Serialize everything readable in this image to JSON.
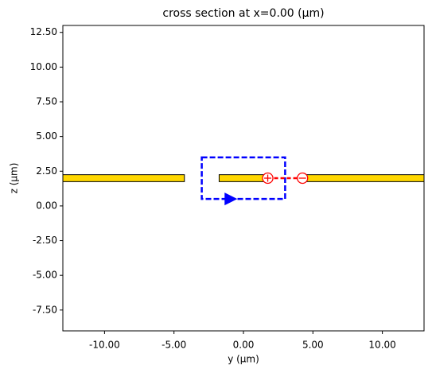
{
  "chart_data": {
    "type": "cross_section",
    "title": "cross section at x=0.00 (μm)",
    "xlabel": "y (μm)",
    "ylabel": "z (μm)",
    "xlim": [
      -13,
      13
    ],
    "ylim": [
      -9,
      13
    ],
    "xticks": [
      {
        "value": -10,
        "label": "-10.00"
      },
      {
        "value": -5,
        "label": "-5.00"
      },
      {
        "value": 0,
        "label": "0.00"
      },
      {
        "value": 5,
        "label": "5.00"
      },
      {
        "value": 10,
        "label": "10.00"
      }
    ],
    "yticks": [
      {
        "value": -7.5,
        "label": "-7.50"
      },
      {
        "value": -5,
        "label": "-5.00"
      },
      {
        "value": -2.5,
        "label": "-2.50"
      },
      {
        "value": 0,
        "label": "0.00"
      },
      {
        "value": 2.5,
        "label": "2.50"
      },
      {
        "value": 5,
        "label": "5.00"
      },
      {
        "value": 7.5,
        "label": "7.50"
      },
      {
        "value": 10,
        "label": "10.00"
      },
      {
        "value": 12.5,
        "label": "12.50"
      }
    ],
    "conductor_color": "#ffd700",
    "conductors": [
      {
        "y": [
          -13,
          -4.25
        ],
        "z": [
          1.75,
          2.25
        ]
      },
      {
        "y": [
          -1.75,
          1.75
        ],
        "z": [
          1.75,
          2.25
        ]
      },
      {
        "y": [
          4.25,
          13
        ],
        "z": [
          1.75,
          2.25
        ]
      }
    ],
    "current_path": {
      "y": [
        -3,
        3
      ],
      "z": [
        0.5,
        3.5
      ],
      "color": "#0000ff"
    },
    "voltage_path": {
      "y": [
        1.75,
        4.25
      ],
      "z": 2,
      "color": "#ff0000"
    }
  }
}
